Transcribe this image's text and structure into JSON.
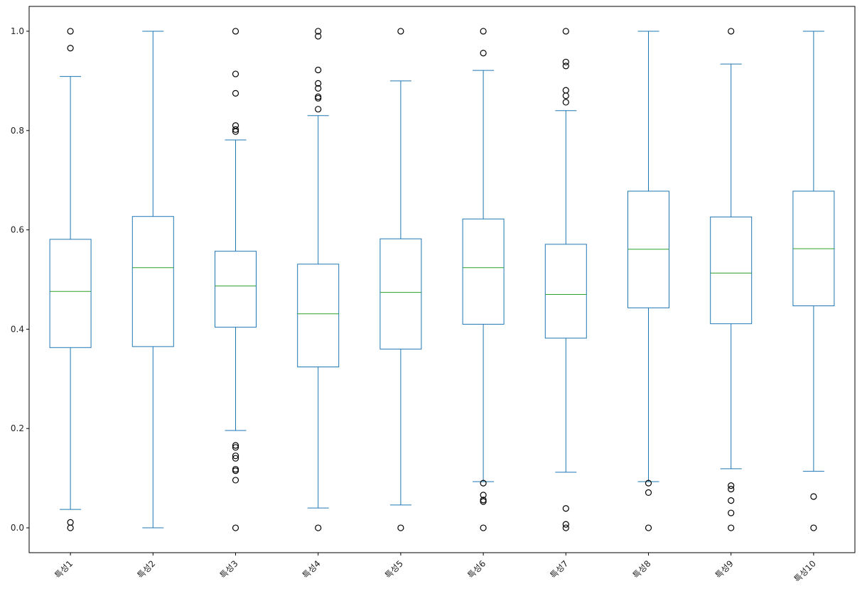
{
  "chart_data": {
    "type": "box",
    "title": "",
    "xlabel": "",
    "ylabel": "",
    "ylim": [
      -0.05,
      1.05
    ],
    "yticks": [
      0.0,
      0.2,
      0.4,
      0.6,
      0.8,
      1.0
    ],
    "ytick_labels": [
      "0.0",
      "0.2",
      "0.4",
      "0.6",
      "0.8",
      "1.0"
    ],
    "grid": false,
    "colors": {
      "box": "#1f77b4",
      "median": "#2ca02c",
      "flier": "#000000"
    },
    "categories": [
      "특성1",
      "특성2",
      "특성3",
      "특성4",
      "특성5",
      "특성6",
      "특성7",
      "특성8",
      "특성9",
      "특성10"
    ],
    "boxes": [
      {
        "label": "특성1",
        "whislo": 0.037,
        "q1": 0.363,
        "med": 0.476,
        "q3": 0.581,
        "whishi": 0.909,
        "fliers": [
          1.0,
          0.966,
          0.011,
          0.0
        ]
      },
      {
        "label": "특성2",
        "whislo": 0.0,
        "q1": 0.365,
        "med": 0.524,
        "q3": 0.627,
        "whishi": 1.0,
        "fliers": []
      },
      {
        "label": "특성3",
        "whislo": 0.196,
        "q1": 0.404,
        "med": 0.487,
        "q3": 0.557,
        "whishi": 0.781,
        "fliers": [
          1.0,
          0.914,
          0.875,
          0.81,
          0.802,
          0.798,
          0.166,
          0.162,
          0.145,
          0.14,
          0.118,
          0.115,
          0.096,
          0.0
        ]
      },
      {
        "label": "특성4",
        "whislo": 0.04,
        "q1": 0.324,
        "med": 0.431,
        "q3": 0.531,
        "whishi": 0.83,
        "fliers": [
          1.0,
          0.99,
          0.922,
          0.895,
          0.885,
          0.868,
          0.865,
          0.843,
          0.0
        ]
      },
      {
        "label": "특성5",
        "whislo": 0.046,
        "q1": 0.36,
        "med": 0.474,
        "q3": 0.582,
        "whishi": 0.9,
        "fliers": [
          1.0,
          0.0
        ]
      },
      {
        "label": "특성6",
        "whislo": 0.093,
        "q1": 0.41,
        "med": 0.524,
        "q3": 0.622,
        "whishi": 0.921,
        "fliers": [
          1.0,
          0.956,
          0.09,
          0.066,
          0.056,
          0.053,
          0.0
        ]
      },
      {
        "label": "특성7",
        "whislo": 0.112,
        "q1": 0.382,
        "med": 0.47,
        "q3": 0.571,
        "whishi": 0.84,
        "fliers": [
          1.0,
          0.938,
          0.93,
          0.881,
          0.87,
          0.857,
          0.039,
          0.007,
          0.0
        ]
      },
      {
        "label": "특성8",
        "whislo": 0.093,
        "q1": 0.443,
        "med": 0.561,
        "q3": 0.678,
        "whishi": 1.0,
        "fliers": [
          0.09,
          0.071,
          0.0
        ]
      },
      {
        "label": "특성9",
        "whislo": 0.119,
        "q1": 0.411,
        "med": 0.513,
        "q3": 0.626,
        "whishi": 0.934,
        "fliers": [
          1.0,
          0.085,
          0.078,
          0.055,
          0.03,
          0.0
        ]
      },
      {
        "label": "특성10",
        "whislo": 0.114,
        "q1": 0.447,
        "med": 0.562,
        "q3": 0.678,
        "whishi": 1.0,
        "fliers": [
          0.063,
          0.0
        ]
      }
    ]
  }
}
